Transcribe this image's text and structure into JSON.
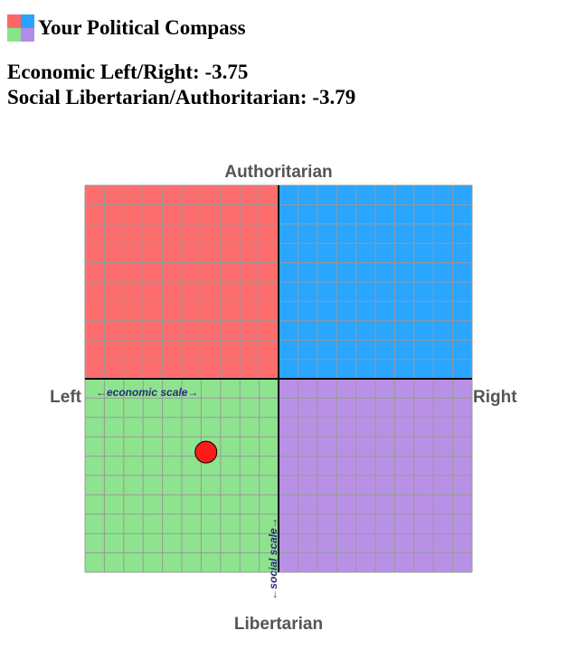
{
  "app": {
    "title": "Your Political Compass"
  },
  "scores": {
    "economic_label": "Economic Left/Right:",
    "economic_value": -3.75,
    "social_label": "Social Libertarian/Authoritarian:",
    "social_value": -3.79
  },
  "compass": {
    "top_label": "Authoritarian",
    "bottom_label": "Libertarian",
    "left_label": "Left",
    "right_label": "Right",
    "economic_scale_label": "←economic scale→",
    "social_scale_label": "←social scale→",
    "range": [
      -10,
      10
    ],
    "grid_divisions": 20,
    "colors": {
      "authoritarian_left": "#ff6e6e",
      "authoritarian_right": "#2aa6ff",
      "libertarian_left": "#8ee38e",
      "libertarian_right": "#b891e6",
      "grid": "#999999",
      "axes": "#000000",
      "marker": "#ff1a1a"
    }
  }
}
